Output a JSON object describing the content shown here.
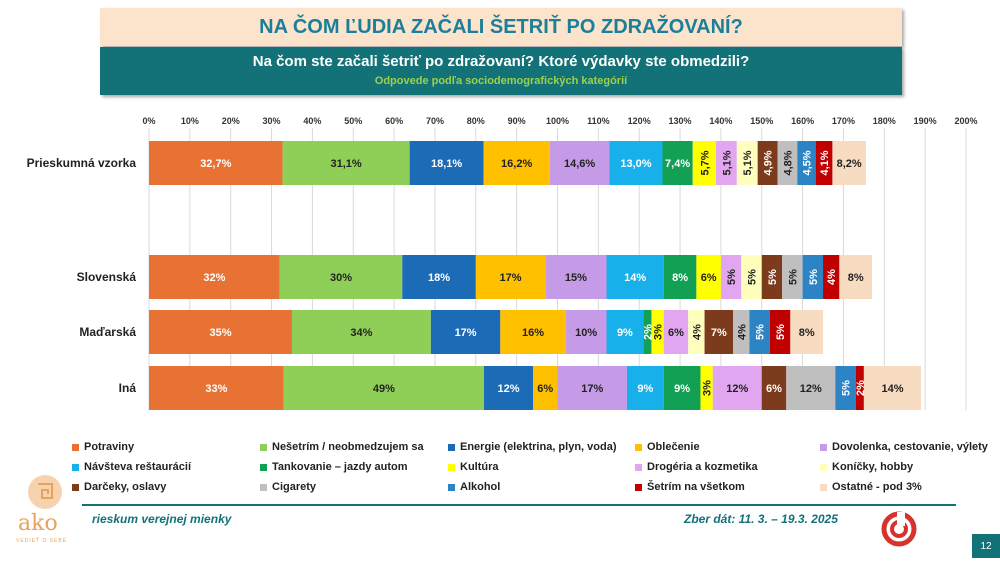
{
  "header": {
    "title": "NA ČOM ĽUDIA ZAČALI ŠETRIŤ PO ZDRAŽOVANÍ?",
    "question": "Na čom ste začali šetriť po zdražovaní? Ktoré výdavky ste obmedzili?",
    "subtitle": "Odpovede podľa sociodemografických kategórií"
  },
  "chart_data": {
    "type": "bar",
    "orientation": "horizontal",
    "stacked": true,
    "xlim": [
      0,
      200
    ],
    "x_ticks": [
      "0%",
      "10%",
      "20%",
      "30%",
      "40%",
      "50%",
      "60%",
      "70%",
      "80%",
      "90%",
      "100%",
      "110%",
      "120%",
      "130%",
      "140%",
      "150%",
      "160%",
      "170%",
      "180%",
      "190%",
      "200%"
    ],
    "categories": [
      "Prieskumná vzorka",
      "Slovenská",
      "Maďarská",
      "Iná"
    ],
    "series": [
      {
        "name": "Potraviny",
        "color": "#e87233",
        "values": [
          32.7,
          32,
          35,
          33
        ],
        "labels": [
          "32,7%",
          "32%",
          "35%",
          "33%"
        ]
      },
      {
        "name": "Nešetrím / neobmedzujem sa",
        "color": "#8fcf58",
        "values": [
          31.1,
          30,
          34,
          49
        ],
        "labels": [
          "31,1%",
          "30%",
          "34%",
          "49%"
        ]
      },
      {
        "name": "Energie (elektrina, plyn, voda)",
        "color": "#1c6bb7",
        "values": [
          18.1,
          18,
          17,
          12
        ],
        "labels": [
          "18,1%",
          "18%",
          "17%",
          "12%"
        ]
      },
      {
        "name": "Oblečenie",
        "color": "#ffc000",
        "values": [
          16.2,
          17,
          16,
          6
        ],
        "labels": [
          "16,2%",
          "17%",
          "16%",
          "6%"
        ]
      },
      {
        "name": "Dovolenka, cestovanie, výlety",
        "color": "#c59be8",
        "values": [
          14.6,
          15,
          10,
          17
        ],
        "labels": [
          "14,6%",
          "15%",
          "10%",
          "17%"
        ]
      },
      {
        "name": "Návšteva reštaurácií",
        "color": "#18b0eb",
        "values": [
          13.0,
          14,
          9,
          9
        ],
        "labels": [
          "13,0%",
          "14%",
          "9%",
          "9%"
        ]
      },
      {
        "name": "Tankovanie – jazdy autom",
        "color": "#11a054",
        "values": [
          7.4,
          8,
          2,
          9
        ],
        "labels": [
          "7,4%",
          "8%",
          "2%",
          "9%"
        ]
      },
      {
        "name": "Kultúra",
        "color": "#ffff00",
        "values": [
          5.7,
          6,
          3,
          3
        ],
        "labels": [
          "5,7%",
          "6%",
          "3%",
          "3%"
        ]
      },
      {
        "name": "Drogéria a kozmetika",
        "color": "#e2a6f0",
        "values": [
          5.1,
          5,
          6,
          12
        ],
        "labels": [
          "5,1%",
          "5%",
          "6%",
          "12%"
        ]
      },
      {
        "name": "Koníčky, hobby",
        "color": "#ffffbd",
        "values": [
          5.1,
          5,
          4,
          0
        ],
        "labels": [
          "5,1%",
          "5%",
          "4%",
          ""
        ]
      },
      {
        "name": "Darčeky, oslavy",
        "color": "#7b3b1c",
        "values": [
          4.9,
          5,
          7,
          6
        ],
        "labels": [
          "4,9%",
          "5%",
          "7%",
          "6%"
        ]
      },
      {
        "name": "Cigarety",
        "color": "#bfbfbf",
        "values": [
          4.8,
          5,
          4,
          12
        ],
        "labels": [
          "4,8%",
          "5%",
          "4%",
          "12%"
        ]
      },
      {
        "name": "Alkohol",
        "color": "#2c84c4",
        "values": [
          4.5,
          5,
          5,
          5
        ],
        "labels": [
          "4,5%",
          "5%",
          "5%",
          "5%"
        ]
      },
      {
        "name": "Šetrím na všetkom",
        "color": "#c00000",
        "values": [
          4.1,
          4,
          5,
          2
        ],
        "labels": [
          "4,1%",
          "4%",
          "5%",
          "2%"
        ]
      },
      {
        "name": "Ostatné - pod 3%",
        "color": "#f8dcc2",
        "values": [
          8.2,
          8,
          8,
          14
        ],
        "labels": [
          "8,2%",
          "8%",
          "8%",
          "14%"
        ]
      }
    ]
  },
  "footer": {
    "left": "rieskum verejnej mienky",
    "right": "Zber dát: 11. 3. – 19.3. 2025",
    "logo_text": "ako",
    "logo_sub": "VEDIEŤ O SEBE",
    "page": "12"
  }
}
